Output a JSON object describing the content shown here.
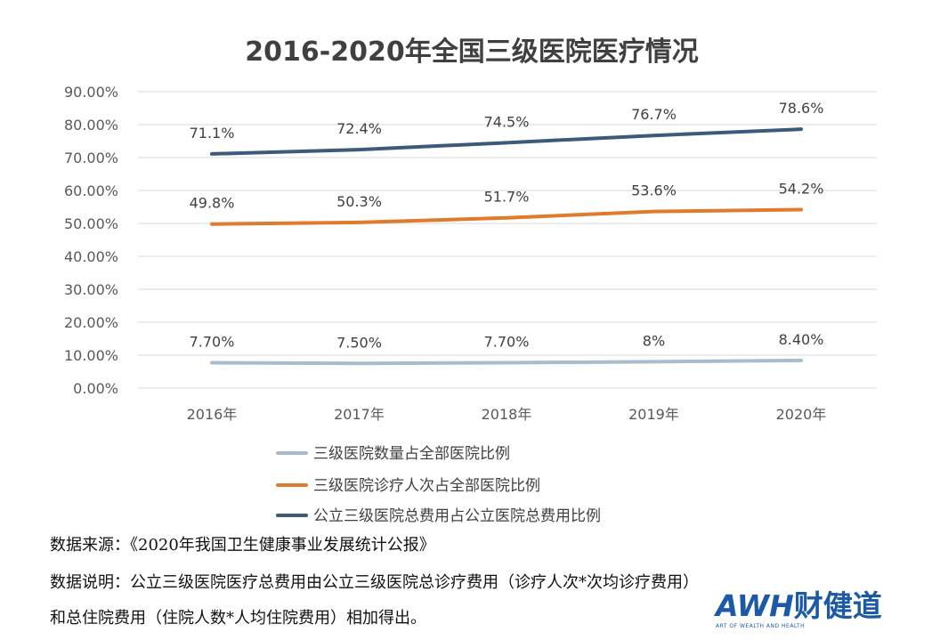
{
  "chart_data": {
    "type": "line",
    "title": "2016-2020年全国三级医院医疗情况",
    "categories": [
      "2016年",
      "2017年",
      "2018年",
      "2019年",
      "2020年"
    ],
    "ylim": [
      0,
      90
    ],
    "ytick_labels": [
      "0.00%",
      "10.00%",
      "20.00%",
      "30.00%",
      "40.00%",
      "50.00%",
      "60.00%",
      "70.00%",
      "80.00%",
      "90.00%"
    ],
    "grid": true,
    "legend_position": "bottom",
    "series": [
      {
        "name": "三级医院数量占全部医院比例",
        "color": "#a9bccc",
        "values": [
          7.7,
          7.5,
          7.7,
          8,
          8.4
        ],
        "labels": [
          "7.70%",
          "7.50%",
          "7.70%",
          "8%",
          "8.40%"
        ]
      },
      {
        "name": "三级医院诊疗人次占全部医院比例",
        "color": "#e07b2c",
        "values": [
          49.8,
          50.3,
          51.7,
          53.6,
          54.2
        ],
        "labels": [
          "49.8%",
          "50.3%",
          "51.7%",
          "53.6%",
          "54.2%"
        ]
      },
      {
        "name": "公立三级医院总费用占公立医院总费用比例",
        "color": "#3d5a7a",
        "values": [
          71.1,
          72.4,
          74.5,
          76.7,
          78.6
        ],
        "labels": [
          "71.1%",
          "72.4%",
          "74.5%",
          "76.7%",
          "78.6%"
        ]
      }
    ]
  },
  "notes": {
    "source": "数据来源：《2020年我国卫生健康事业发展统计公报》",
    "explain_line1": "数据说明：公立三级医院医疗总费用由公立三级医院总诊疗费用（诊疗人次*次均诊疗费用）",
    "explain_line2": "和总住院费用（住院人数*人均住院费用）相加得出。"
  },
  "logo": {
    "main": "AWH",
    "cn": "财健道",
    "sub": "ART OF WEALTH AND HEALTH"
  }
}
